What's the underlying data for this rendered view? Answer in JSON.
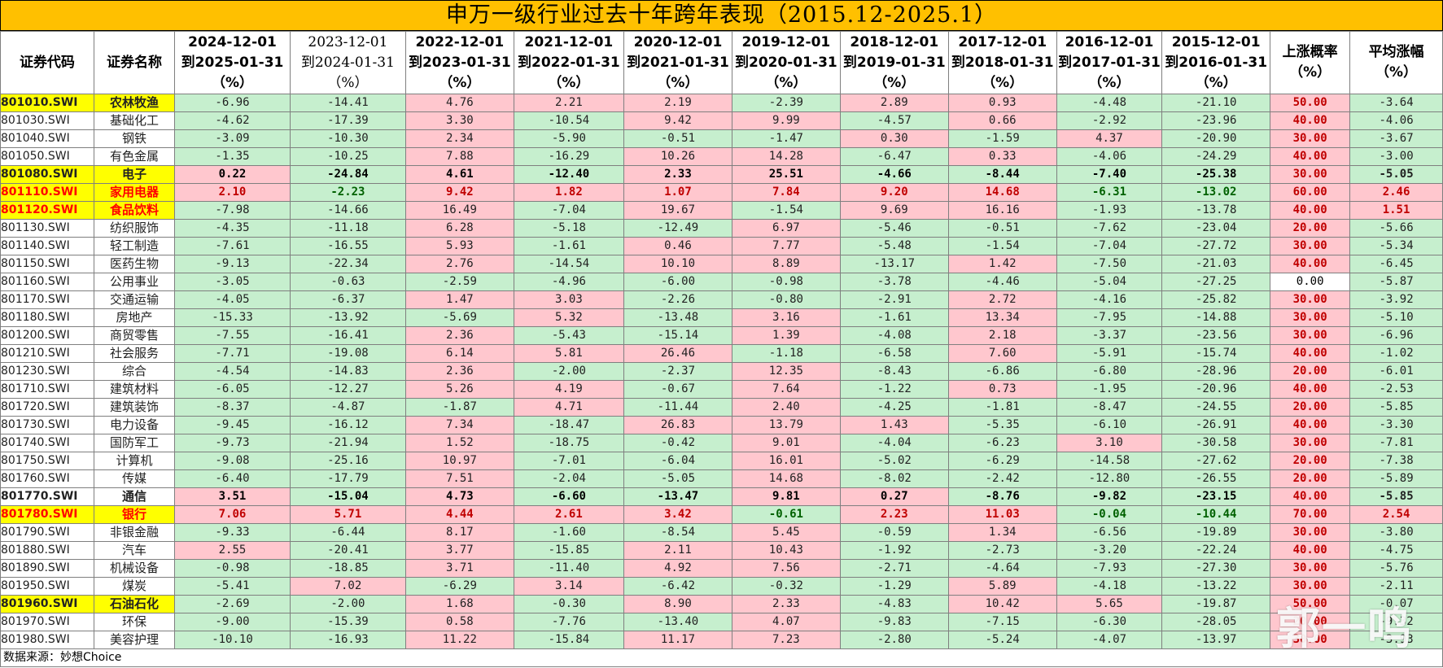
{
  "title": "申万一级行业过去十年跨年表现（2015.12-2025.1）",
  "headers": [
    {
      "lines": [
        "证券代码"
      ],
      "serif": false
    },
    {
      "lines": [
        "证券名称"
      ],
      "serif": false
    },
    {
      "lines": [
        "2024-12-01",
        "到2025-01-31",
        "（%）"
      ],
      "serif": false
    },
    {
      "lines": [
        "2023-12-01",
        "到2024-01-31",
        "（%）"
      ],
      "serif": true
    },
    {
      "lines": [
        "2022-12-01",
        "到2023-01-31",
        "（%）"
      ],
      "serif": false
    },
    {
      "lines": [
        "2021-12-01",
        "到2022-01-31",
        "（%）"
      ],
      "serif": false
    },
    {
      "lines": [
        "2020-12-01",
        "到2021-01-31",
        "（%）"
      ],
      "serif": false
    },
    {
      "lines": [
        "2019-12-01",
        "到2020-01-31",
        "（%）"
      ],
      "serif": false
    },
    {
      "lines": [
        "2018-12-01",
        "到2019-01-31",
        "（%）"
      ],
      "serif": false
    },
    {
      "lines": [
        "2017-12-01",
        "到2018-01-31",
        "（%）"
      ],
      "serif": false
    },
    {
      "lines": [
        "2016-12-01",
        "到2017-01-31",
        "（%）"
      ],
      "serif": false
    },
    {
      "lines": [
        "2015-12-01",
        "到2016-01-31",
        "（%）"
      ],
      "serif": false
    },
    {
      "lines": [
        "上涨概率",
        "（%）"
      ],
      "serif": false
    },
    {
      "lines": [
        "平均涨幅",
        "（%）"
      ],
      "serif": false
    }
  ],
  "rows": [
    {
      "code": "801010.SWI",
      "name": "农林牧渔",
      "vals": [
        "-6.96",
        "-14.41",
        "4.76",
        "2.21",
        "2.19",
        "-2.39",
        "2.89",
        "0.93",
        "-4.48",
        "-21.10"
      ],
      "prob": "50.00",
      "avg": "-3.64",
      "style": "hl"
    },
    {
      "code": "801030.SWI",
      "name": "基础化工",
      "vals": [
        "-4.62",
        "-17.39",
        "3.30",
        "-10.54",
        "9.42",
        "9.99",
        "-4.57",
        "0.66",
        "-2.92",
        "-23.96"
      ],
      "prob": "40.00",
      "avg": "-4.06",
      "style": ""
    },
    {
      "code": "801040.SWI",
      "name": "钢铁",
      "vals": [
        "-3.09",
        "-10.30",
        "2.34",
        "-5.90",
        "-0.51",
        "-1.47",
        "0.30",
        "-1.59",
        "4.37",
        "-20.90"
      ],
      "prob": "30.00",
      "avg": "-3.67",
      "style": ""
    },
    {
      "code": "801050.SWI",
      "name": "有色金属",
      "vals": [
        "-1.35",
        "-10.25",
        "7.88",
        "-16.29",
        "10.26",
        "14.28",
        "-6.47",
        "0.33",
        "-4.06",
        "-24.29"
      ],
      "prob": "40.00",
      "avg": "-3.00",
      "style": ""
    },
    {
      "code": "801080.SWI",
      "name": "电子",
      "vals": [
        "0.22",
        "-24.84",
        "4.61",
        "-12.40",
        "2.33",
        "25.51",
        "-4.66",
        "-8.44",
        "-7.40",
        "-25.38"
      ],
      "prob": "30.00",
      "avg": "-5.05",
      "style": "hl bold"
    },
    {
      "code": "801110.SWI",
      "name": "家用电器",
      "vals": [
        "2.10",
        "-2.23",
        "9.42",
        "1.82",
        "1.07",
        "7.84",
        "9.20",
        "14.68",
        "-6.31",
        "-13.02"
      ],
      "prob": "60.00",
      "avg": "2.46",
      "style": "hl bold red"
    },
    {
      "code": "801120.SWI",
      "name": "食品饮料",
      "vals": [
        "-7.98",
        "-14.66",
        "16.49",
        "-7.04",
        "19.67",
        "-1.54",
        "9.69",
        "16.16",
        "-1.93",
        "-13.78"
      ],
      "prob": "40.00",
      "avg": "1.51",
      "style": "hl red"
    },
    {
      "code": "801130.SWI",
      "name": "纺织服饰",
      "vals": [
        "-4.35",
        "-11.18",
        "6.28",
        "-5.18",
        "-12.49",
        "6.97",
        "-5.46",
        "-0.51",
        "-7.62",
        "-23.04"
      ],
      "prob": "20.00",
      "avg": "-5.66",
      "style": ""
    },
    {
      "code": "801140.SWI",
      "name": "轻工制造",
      "vals": [
        "-7.61",
        "-16.55",
        "5.93",
        "-1.61",
        "0.46",
        "7.77",
        "-5.48",
        "-1.54",
        "-7.04",
        "-27.72"
      ],
      "prob": "30.00",
      "avg": "-5.34",
      "style": ""
    },
    {
      "code": "801150.SWI",
      "name": "医药生物",
      "vals": [
        "-9.13",
        "-22.34",
        "2.76",
        "-14.54",
        "10.10",
        "8.89",
        "-13.17",
        "1.42",
        "-7.50",
        "-21.03"
      ],
      "prob": "40.00",
      "avg": "-6.45",
      "style": ""
    },
    {
      "code": "801160.SWI",
      "name": "公用事业",
      "vals": [
        "-3.05",
        "-0.63",
        "-2.59",
        "-4.96",
        "-6.00",
        "-0.98",
        "-3.78",
        "-4.46",
        "-5.04",
        "-27.25"
      ],
      "prob": "0.00",
      "avg": "-5.87",
      "style": ""
    },
    {
      "code": "801170.SWI",
      "name": "交通运输",
      "vals": [
        "-4.05",
        "-6.37",
        "1.47",
        "3.03",
        "-2.26",
        "-0.80",
        "-2.91",
        "2.72",
        "-4.16",
        "-25.82"
      ],
      "prob": "30.00",
      "avg": "-3.92",
      "style": ""
    },
    {
      "code": "801180.SWI",
      "name": "房地产",
      "vals": [
        "-15.33",
        "-13.92",
        "-5.69",
        "5.32",
        "-13.48",
        "3.16",
        "-1.61",
        "13.34",
        "-7.95",
        "-14.88"
      ],
      "prob": "30.00",
      "avg": "-5.10",
      "style": ""
    },
    {
      "code": "801200.SWI",
      "name": "商贸零售",
      "vals": [
        "-7.55",
        "-16.41",
        "2.36",
        "-5.43",
        "-15.14",
        "1.39",
        "-4.08",
        "2.18",
        "-3.37",
        "-23.56"
      ],
      "prob": "30.00",
      "avg": "-6.96",
      "style": ""
    },
    {
      "code": "801210.SWI",
      "name": "社会服务",
      "vals": [
        "-7.71",
        "-19.08",
        "6.14",
        "5.81",
        "26.46",
        "-1.18",
        "-6.58",
        "7.60",
        "-5.91",
        "-15.74"
      ],
      "prob": "40.00",
      "avg": "-1.02",
      "style": ""
    },
    {
      "code": "801230.SWI",
      "name": "综合",
      "vals": [
        "-4.54",
        "-14.83",
        "2.36",
        "-2.00",
        "-2.37",
        "12.35",
        "-8.43",
        "-6.86",
        "-6.80",
        "-28.96"
      ],
      "prob": "20.00",
      "avg": "-6.01",
      "style": ""
    },
    {
      "code": "801710.SWI",
      "name": "建筑材料",
      "vals": [
        "-6.05",
        "-12.27",
        "5.26",
        "4.19",
        "-0.67",
        "7.64",
        "-1.22",
        "0.73",
        "-1.95",
        "-20.96"
      ],
      "prob": "40.00",
      "avg": "-2.53",
      "style": ""
    },
    {
      "code": "801720.SWI",
      "name": "建筑装饰",
      "vals": [
        "-8.37",
        "-4.87",
        "-1.87",
        "4.71",
        "-11.44",
        "2.40",
        "-4.25",
        "-1.81",
        "-8.47",
        "-24.55"
      ],
      "prob": "20.00",
      "avg": "-5.85",
      "style": ""
    },
    {
      "code": "801730.SWI",
      "name": "电力设备",
      "vals": [
        "-9.45",
        "-16.12",
        "7.34",
        "-18.47",
        "26.83",
        "13.79",
        "1.43",
        "-5.35",
        "-6.10",
        "-26.91"
      ],
      "prob": "40.00",
      "avg": "-3.30",
      "style": ""
    },
    {
      "code": "801740.SWI",
      "name": "国防军工",
      "vals": [
        "-9.73",
        "-21.94",
        "1.52",
        "-18.75",
        "-0.42",
        "9.01",
        "-4.04",
        "-6.23",
        "3.10",
        "-30.58"
      ],
      "prob": "30.00",
      "avg": "-7.81",
      "style": ""
    },
    {
      "code": "801750.SWI",
      "name": "计算机",
      "vals": [
        "-9.08",
        "-25.16",
        "10.97",
        "-7.01",
        "-6.04",
        "16.01",
        "-5.02",
        "-6.29",
        "-14.58",
        "-27.62"
      ],
      "prob": "20.00",
      "avg": "-7.38",
      "style": ""
    },
    {
      "code": "801760.SWI",
      "name": "传媒",
      "vals": [
        "-6.40",
        "-17.79",
        "7.51",
        "-2.04",
        "-5.05",
        "14.68",
        "-8.02",
        "-2.42",
        "-12.80",
        "-26.55"
      ],
      "prob": "20.00",
      "avg": "-5.89",
      "style": ""
    },
    {
      "code": "801770.SWI",
      "name": "通信",
      "vals": [
        "3.51",
        "-15.04",
        "4.73",
        "-6.60",
        "-13.47",
        "9.81",
        "0.27",
        "-8.76",
        "-9.82",
        "-23.15"
      ],
      "prob": "40.00",
      "avg": "-5.85",
      "style": "bold"
    },
    {
      "code": "801780.SWI",
      "name": "银行",
      "vals": [
        "7.06",
        "5.71",
        "4.44",
        "2.61",
        "3.42",
        "-0.61",
        "2.23",
        "11.03",
        "-0.04",
        "-10.44"
      ],
      "prob": "70.00",
      "avg": "2.54",
      "style": "hl bold red"
    },
    {
      "code": "801790.SWI",
      "name": "非银金融",
      "vals": [
        "-9.33",
        "-6.44",
        "8.17",
        "-1.60",
        "-8.54",
        "5.45",
        "-0.59",
        "1.34",
        "-6.56",
        "-19.89"
      ],
      "prob": "30.00",
      "avg": "-3.80",
      "style": ""
    },
    {
      "code": "801880.SWI",
      "name": "汽车",
      "vals": [
        "2.55",
        "-20.41",
        "3.77",
        "-15.85",
        "2.11",
        "10.43",
        "-1.92",
        "-2.73",
        "-3.20",
        "-22.24"
      ],
      "prob": "40.00",
      "avg": "-4.75",
      "style": ""
    },
    {
      "code": "801890.SWI",
      "name": "机械设备",
      "vals": [
        "-0.98",
        "-18.85",
        "3.71",
        "-11.40",
        "4.92",
        "7.56",
        "-2.71",
        "-4.64",
        "-7.93",
        "-27.30"
      ],
      "prob": "30.00",
      "avg": "-5.76",
      "style": ""
    },
    {
      "code": "801950.SWI",
      "name": "煤炭",
      "vals": [
        "-5.41",
        "7.02",
        "-6.29",
        "3.14",
        "-6.42",
        "-0.32",
        "-1.29",
        "5.89",
        "-4.18",
        "-13.22"
      ],
      "prob": "30.00",
      "avg": "-2.11",
      "style": ""
    },
    {
      "code": "801960.SWI",
      "name": "石油石化",
      "vals": [
        "-2.69",
        "-2.00",
        "1.68",
        "-0.30",
        "8.90",
        "2.33",
        "-4.83",
        "10.42",
        "5.65",
        "-19.87"
      ],
      "prob": "50.00",
      "avg": "-0.07",
      "style": "hl"
    },
    {
      "code": "801970.SWI",
      "name": "环保",
      "vals": [
        "-9.00",
        "-15.39",
        "0.58",
        "-7.76",
        "-13.40",
        "4.07",
        "-9.83",
        "-7.15",
        "-6.30",
        "-28.05"
      ],
      "prob": "20.00",
      "avg": "-9.32",
      "style": ""
    },
    {
      "code": "801980.SWI",
      "name": "美容护理",
      "vals": [
        "-10.10",
        "-16.93",
        "11.22",
        "-15.84",
        "11.17",
        "7.23",
        "-2.80",
        "-5.24",
        "-4.07",
        "-13.97"
      ],
      "prob": "30.00",
      "avg": "-3.93",
      "style": ""
    }
  ],
  "source": "数据来源：妙想Choice",
  "watermark": "郭一鸣",
  "colors": {
    "title_bg": "#FFC000",
    "positive_bg": "#FFC7CE",
    "negative_bg": "#C6EFCE",
    "highlight": "#FFFF00",
    "red_text": "#FF0000"
  }
}
